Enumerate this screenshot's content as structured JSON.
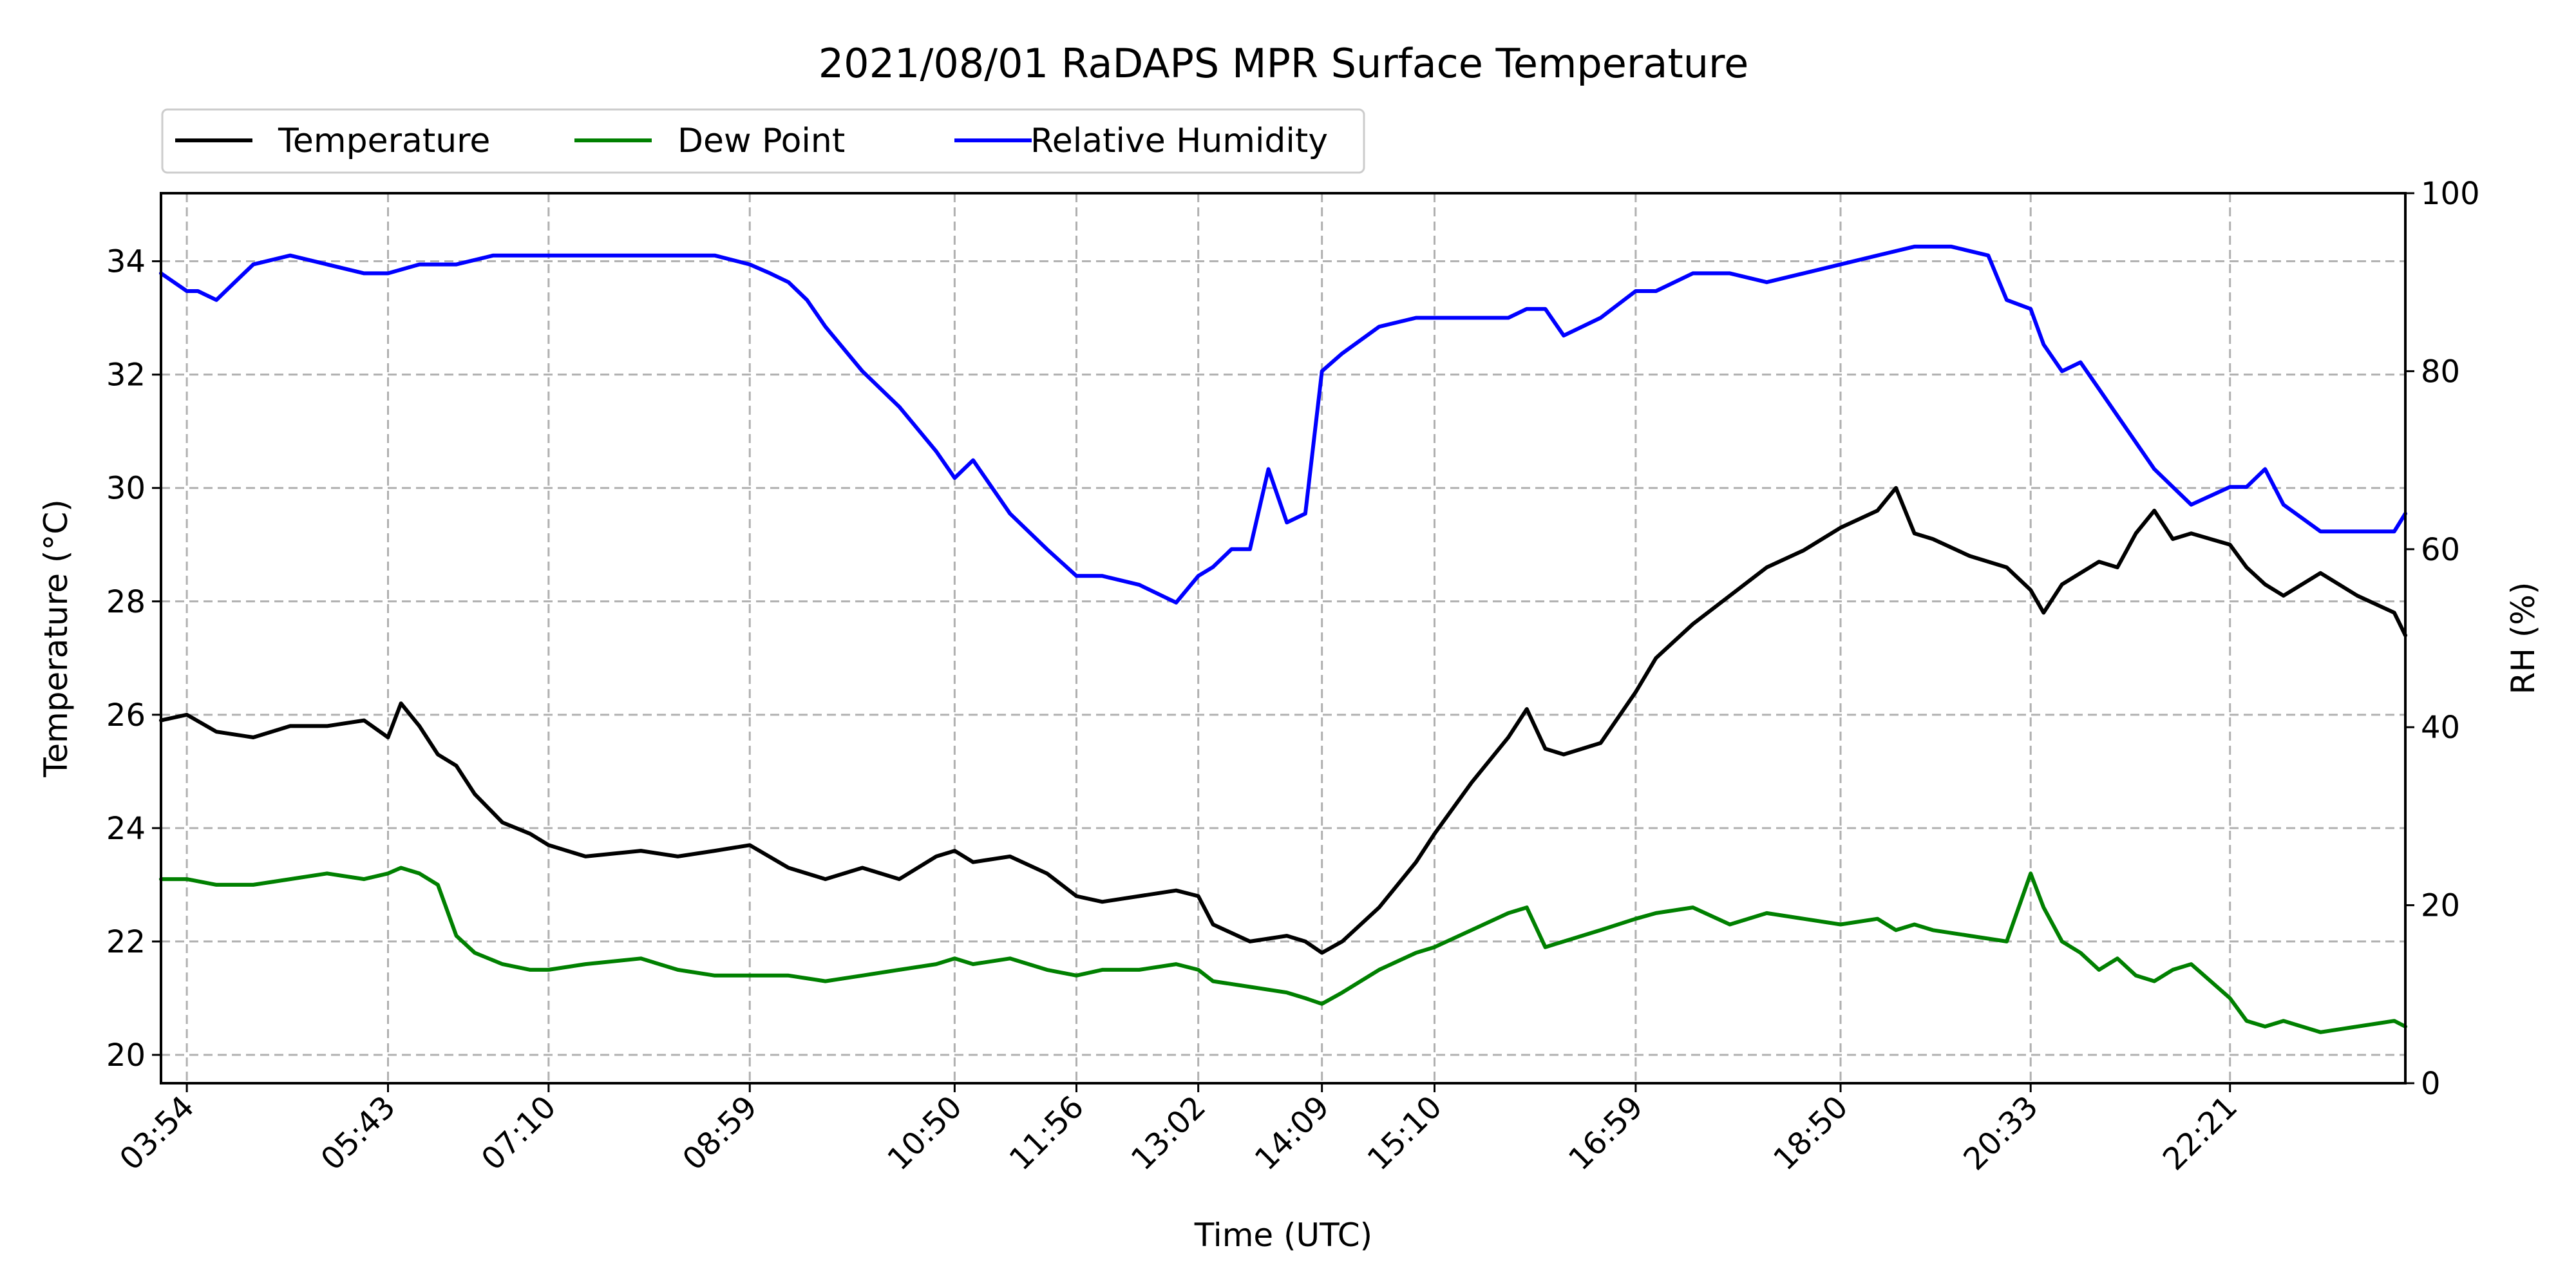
{
  "chart_data": {
    "type": "line",
    "title": "2021/08/01 RaDAPS MPR Surface Temperature",
    "xlabel": "Time (UTC)",
    "ylabel": "Temperature ($^\\circ$C)",
    "ylabel_display": "Temperature (°C)",
    "y2label": "RH (%)",
    "xlim": [
      "03:40",
      "23:56"
    ],
    "ylim": [
      19.5,
      35.2
    ],
    "y2lim": [
      0,
      100
    ],
    "x_ticks": [
      "03:54",
      "05:43",
      "07:10",
      "08:59",
      "10:50",
      "11:56",
      "13:02",
      "14:09",
      "15:10",
      "16:59",
      "18:50",
      "20:33",
      "22:21"
    ],
    "y_ticks": [
      20,
      22,
      24,
      26,
      28,
      30,
      32,
      34
    ],
    "y2_ticks": [
      0,
      20,
      40,
      60,
      80,
      100
    ],
    "grid": true,
    "legend_position": "above-top-left",
    "series": [
      {
        "name": "Temperature",
        "axis": "left",
        "color": "#000000",
        "x": [
          "03:40",
          "03:54",
          "04:10",
          "04:30",
          "04:50",
          "05:10",
          "05:30",
          "05:43",
          "05:50",
          "06:00",
          "06:10",
          "06:20",
          "06:30",
          "06:45",
          "07:00",
          "07:10",
          "07:30",
          "08:00",
          "08:20",
          "08:40",
          "08:59",
          "09:20",
          "09:40",
          "10:00",
          "10:20",
          "10:40",
          "10:50",
          "11:00",
          "11:20",
          "11:40",
          "11:56",
          "12:10",
          "12:30",
          "12:50",
          "13:02",
          "13:10",
          "13:30",
          "13:50",
          "14:00",
          "14:09",
          "14:20",
          "14:40",
          "15:00",
          "15:10",
          "15:30",
          "15:50",
          "16:00",
          "16:10",
          "16:20",
          "16:40",
          "16:59",
          "17:10",
          "17:30",
          "17:50",
          "18:10",
          "18:30",
          "18:50",
          "19:10",
          "19:20",
          "19:30",
          "19:40",
          "20:00",
          "20:20",
          "20:33",
          "20:40",
          "20:50",
          "21:00",
          "21:10",
          "21:20",
          "21:30",
          "21:40",
          "21:50",
          "22:00",
          "22:21",
          "22:30",
          "22:40",
          "22:50",
          "23:10",
          "23:30",
          "23:50",
          "23:56"
        ],
        "values": [
          25.9,
          26.0,
          25.7,
          25.6,
          25.8,
          25.8,
          25.9,
          25.6,
          26.2,
          25.8,
          25.3,
          25.1,
          24.6,
          24.1,
          23.9,
          23.7,
          23.5,
          23.6,
          23.5,
          23.6,
          23.7,
          23.3,
          23.1,
          23.3,
          23.1,
          23.5,
          23.6,
          23.4,
          23.5,
          23.2,
          22.8,
          22.7,
          22.8,
          22.9,
          22.8,
          22.3,
          22.0,
          22.1,
          22.0,
          21.8,
          22.0,
          22.6,
          23.4,
          23.9,
          24.8,
          25.6,
          26.1,
          25.4,
          25.3,
          25.5,
          26.4,
          27.0,
          27.6,
          28.1,
          28.6,
          28.9,
          29.3,
          29.6,
          30.0,
          29.2,
          29.1,
          28.8,
          28.6,
          28.2,
          27.8,
          28.3,
          28.5,
          28.7,
          28.6,
          29.2,
          29.6,
          29.1,
          29.2,
          29.0,
          28.6,
          28.3,
          28.1,
          28.5,
          28.1,
          27.8,
          27.4
        ]
      },
      {
        "name": "Dew Point",
        "axis": "left",
        "color": "#008000",
        "x": [
          "03:40",
          "03:54",
          "04:10",
          "04:30",
          "04:50",
          "05:10",
          "05:30",
          "05:43",
          "05:50",
          "06:00",
          "06:10",
          "06:20",
          "06:30",
          "06:45",
          "07:00",
          "07:10",
          "07:30",
          "08:00",
          "08:20",
          "08:40",
          "08:59",
          "09:20",
          "09:40",
          "10:00",
          "10:20",
          "10:40",
          "10:50",
          "11:00",
          "11:20",
          "11:40",
          "11:56",
          "12:10",
          "12:30",
          "12:50",
          "13:02",
          "13:10",
          "13:30",
          "13:50",
          "14:00",
          "14:09",
          "14:20",
          "14:40",
          "15:00",
          "15:10",
          "15:30",
          "15:50",
          "16:00",
          "16:10",
          "16:20",
          "16:40",
          "16:59",
          "17:10",
          "17:30",
          "17:50",
          "18:10",
          "18:30",
          "18:50",
          "19:10",
          "19:20",
          "19:30",
          "19:40",
          "20:00",
          "20:20",
          "20:33",
          "20:40",
          "20:50",
          "21:00",
          "21:10",
          "21:20",
          "21:30",
          "21:40",
          "21:50",
          "22:00",
          "22:21",
          "22:30",
          "22:40",
          "22:50",
          "23:10",
          "23:30",
          "23:50",
          "23:56"
        ],
        "values": [
          23.1,
          23.1,
          23.0,
          23.0,
          23.1,
          23.2,
          23.1,
          23.2,
          23.3,
          23.2,
          23.0,
          22.1,
          21.8,
          21.6,
          21.5,
          21.5,
          21.6,
          21.7,
          21.5,
          21.4,
          21.4,
          21.4,
          21.3,
          21.4,
          21.5,
          21.6,
          21.7,
          21.6,
          21.7,
          21.5,
          21.4,
          21.5,
          21.5,
          21.6,
          21.5,
          21.3,
          21.2,
          21.1,
          21.0,
          20.9,
          21.1,
          21.5,
          21.8,
          21.9,
          22.2,
          22.5,
          22.6,
          21.9,
          22.0,
          22.2,
          22.4,
          22.5,
          22.6,
          22.3,
          22.5,
          22.4,
          22.3,
          22.4,
          22.2,
          22.3,
          22.2,
          22.1,
          22.0,
          23.2,
          22.6,
          22.0,
          21.8,
          21.5,
          21.7,
          21.4,
          21.3,
          21.5,
          21.6,
          21.0,
          20.6,
          20.5,
          20.6,
          20.4,
          20.5,
          20.6,
          20.5
        ]
      },
      {
        "name": "Relative Humidity",
        "axis": "right",
        "color": "#0000ff",
        "x": [
          "03:40",
          "03:54",
          "04:00",
          "04:10",
          "04:20",
          "04:30",
          "04:50",
          "05:10",
          "05:30",
          "05:43",
          "06:00",
          "06:20",
          "06:40",
          "07:00",
          "07:10",
          "07:30",
          "08:00",
          "08:20",
          "08:40",
          "08:59",
          "09:10",
          "09:20",
          "09:30",
          "09:40",
          "10:00",
          "10:20",
          "10:40",
          "10:50",
          "11:00",
          "11:20",
          "11:40",
          "11:56",
          "12:10",
          "12:30",
          "12:50",
          "13:02",
          "13:10",
          "13:20",
          "13:30",
          "13:40",
          "13:50",
          "14:00",
          "14:09",
          "14:20",
          "14:40",
          "15:00",
          "15:10",
          "15:30",
          "15:50",
          "16:00",
          "16:10",
          "16:20",
          "16:40",
          "16:59",
          "17:10",
          "17:30",
          "17:50",
          "18:10",
          "18:30",
          "18:50",
          "19:10",
          "19:30",
          "19:50",
          "20:10",
          "20:20",
          "20:33",
          "20:40",
          "20:50",
          "21:00",
          "21:10",
          "21:20",
          "21:30",
          "21:40",
          "21:50",
          "22:00",
          "22:21",
          "22:30",
          "22:40",
          "22:50",
          "23:10",
          "23:30",
          "23:50",
          "23:56"
        ],
        "values": [
          91,
          89,
          89,
          88,
          90,
          92,
          93,
          92,
          91,
          91,
          92,
          92,
          93,
          93,
          93,
          93,
          93,
          93,
          93,
          92,
          91,
          90,
          88,
          85,
          80,
          76,
          71,
          68,
          70,
          64,
          60,
          57,
          57,
          56,
          54,
          57,
          58,
          60,
          60,
          69,
          63,
          64,
          80,
          82,
          85,
          86,
          86,
          86,
          86,
          87,
          87,
          84,
          86,
          89,
          89,
          91,
          91,
          90,
          91,
          92,
          93,
          94,
          94,
          93,
          88,
          87,
          83,
          80,
          81,
          78,
          75,
          72,
          69,
          67,
          65,
          67,
          67,
          69,
          65,
          62,
          62,
          62,
          64
        ]
      }
    ]
  }
}
